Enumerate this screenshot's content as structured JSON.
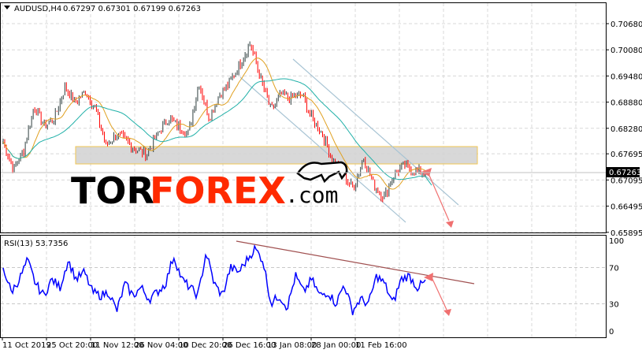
{
  "header": {
    "symbol": "AUDUSD,H4",
    "ohlc": "0.67297 0.67301 0.67199 0.67263"
  },
  "rsi_label": "RSI(13) 53.7356",
  "logo": {
    "part1": "TOR",
    "part2": "FOREX",
    "part3": ".com"
  },
  "colors": {
    "bull": "#2f3f3f",
    "bear": "#ff0000",
    "ma_fast": "#e0a020",
    "ma_slow": "#20b0a8",
    "rsi": "#0000ff",
    "channel": "#a8c4d4",
    "zone": "#d0d0d0",
    "zone_border": "#f0c040",
    "arrow": "#f07070",
    "rsi_trend": "#a05050"
  },
  "chart_data": [
    {
      "type": "candlestick",
      "title": "AUDUSD,H4",
      "ylim": [
        0.65895,
        0.7098
      ],
      "y_ticks": [
        "0.70680",
        "0.70080",
        "0.69480",
        "0.68880",
        "0.68280",
        "0.67695",
        "0.67095",
        "0.66495",
        "0.65895"
      ],
      "x_ticks": [
        "11 Oct 2019",
        "25 Oct 20:00",
        "11 Nov 12:00",
        "26 Nov 04:00",
        "10 Dec 20:00",
        "26 Dec 16:00",
        "13 Jan 08:00",
        "28 Jan 00:00",
        "11 Feb 16:00"
      ],
      "current_price": "0.67263",
      "close_samples": [
        0.67969,
        0.67337,
        0.67789,
        0.68783,
        0.68331,
        0.68512,
        0.69234,
        0.68873,
        0.69144,
        0.68692,
        0.67879,
        0.6815,
        0.67969,
        0.67789,
        0.67698,
        0.6815,
        0.68512,
        0.68331,
        0.6815,
        0.69325,
        0.68512,
        0.69054,
        0.69325,
        0.69776,
        0.70228,
        0.69415,
        0.68692,
        0.69054,
        0.68963,
        0.69054,
        0.68512,
        0.6815,
        0.67518,
        0.67247,
        0.66885,
        0.67608,
        0.66976,
        0.66705,
        0.67247,
        0.67427,
        0.67283,
        0.67263
      ],
      "grid": true
    },
    {
      "type": "line",
      "title": "RSI(13)",
      "ylim": [
        0,
        100
      ],
      "y_ticks": [
        "100",
        "70",
        "30",
        "0"
      ],
      "values": [
        70,
        43,
        57,
        78,
        52,
        39,
        57,
        48,
        78,
        57,
        65,
        43,
        39,
        43,
        22,
        52,
        39,
        48,
        35,
        43,
        52,
        83,
        57,
        48,
        39,
        87,
        52,
        39,
        70,
        65,
        78,
        91,
        78,
        30,
        39,
        26,
        61,
        43,
        57,
        39,
        43,
        30,
        52,
        22,
        35,
        30,
        61,
        52,
        30,
        57,
        61,
        48,
        54
      ],
      "last_value": 53.7356
    }
  ]
}
